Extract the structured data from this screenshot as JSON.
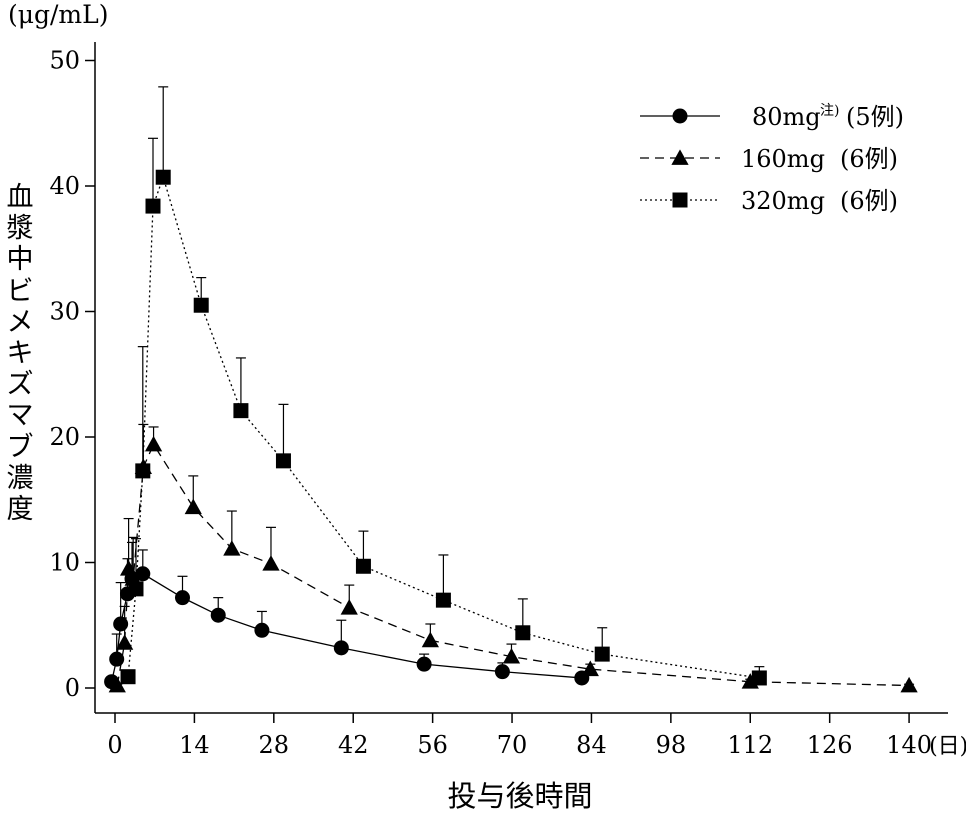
{
  "chart_data": {
    "type": "line",
    "title": "",
    "ylabel_unit": "(μg/mL)",
    "ylabel": "血漿中ビメキズマブ濃度",
    "xlabel": "投与後時間",
    "x_unit": "(日)",
    "xlim": [
      -2,
      146
    ],
    "ylim": [
      -2,
      52
    ],
    "xticks": [
      0,
      14,
      28,
      42,
      56,
      70,
      84,
      98,
      112,
      126,
      140
    ],
    "xtick_labels": [
      "0",
      "14",
      "28",
      "42",
      "56",
      "70",
      "84",
      "98",
      "112",
      "126",
      "140"
    ],
    "yticks": [
      0,
      10,
      20,
      30,
      40,
      50
    ],
    "ytick_labels": [
      "0",
      "10",
      "20",
      "30",
      "40",
      "50"
    ],
    "legend_position": "top-right",
    "error_bars": true,
    "series": [
      {
        "name": "80mg",
        "legend_sup": "注)",
        "legend_n": "(5例)",
        "marker": "circle",
        "line_style": "solid",
        "points": [
          {
            "x": -0.6,
            "y": 0.5,
            "err": 0.3
          },
          {
            "x": 0.3,
            "y": 2.3,
            "err": 2.0
          },
          {
            "x": 1.0,
            "y": 5.1,
            "err": 3.3
          },
          {
            "x": 2.2,
            "y": 7.5,
            "err": 2.8
          },
          {
            "x": 3.0,
            "y": 8.7,
            "err": 2.9
          },
          {
            "x": 4.9,
            "y": 9.1,
            "err": 1.9
          },
          {
            "x": 11.9,
            "y": 7.2,
            "err": 1.7
          },
          {
            "x": 18.2,
            "y": 5.8,
            "err": 1.4
          },
          {
            "x": 25.9,
            "y": 4.6,
            "err": 1.5
          },
          {
            "x": 39.9,
            "y": 3.2,
            "err": 2.2
          },
          {
            "x": 54.5,
            "y": 1.9,
            "err": 0.8
          },
          {
            "x": 68.3,
            "y": 1.3,
            "err": 0.7
          },
          {
            "x": 82.3,
            "y": 0.8,
            "err": 0.3
          }
        ]
      },
      {
        "name": "160mg",
        "legend_sup": "",
        "legend_n": "(6例)",
        "marker": "triangle",
        "line_style": "dashed",
        "points": [
          {
            "x": 0.4,
            "y": 0.2,
            "err": 0.1
          },
          {
            "x": 1.7,
            "y": 3.6,
            "err": 2.9
          },
          {
            "x": 2.4,
            "y": 9.5,
            "err": 4.0
          },
          {
            "x": 3.2,
            "y": 8.7,
            "err": 3.3
          },
          {
            "x": 5.0,
            "y": 17.6,
            "err": 3.4
          },
          {
            "x": 6.8,
            "y": 19.4,
            "err": 1.4
          },
          {
            "x": 13.8,
            "y": 14.4,
            "err": 2.5
          },
          {
            "x": 20.6,
            "y": 11.1,
            "err": 3.0
          },
          {
            "x": 27.5,
            "y": 9.9,
            "err": 2.9
          },
          {
            "x": 41.3,
            "y": 6.4,
            "err": 1.8
          },
          {
            "x": 55.6,
            "y": 3.8,
            "err": 1.3
          },
          {
            "x": 69.9,
            "y": 2.5,
            "err": 1.0
          },
          {
            "x": 83.8,
            "y": 1.5,
            "err": 0.4
          },
          {
            "x": 112.0,
            "y": 0.5,
            "err": 0.2
          },
          {
            "x": 140.0,
            "y": 0.2,
            "err": 0.1
          }
        ]
      },
      {
        "name": "320mg",
        "legend_sup": "",
        "legend_n": "(6例)",
        "marker": "square",
        "line_style": "dotted",
        "points": [
          {
            "x": 2.3,
            "y": 0.9,
            "err": 0.3
          },
          {
            "x": 3.7,
            "y": 7.9,
            "err": 4.0
          },
          {
            "x": 4.9,
            "y": 17.3,
            "err": 9.9
          },
          {
            "x": 6.7,
            "y": 38.4,
            "err": 5.4
          },
          {
            "x": 8.5,
            "y": 40.7,
            "err": 7.2
          },
          {
            "x": 15.2,
            "y": 30.5,
            "err": 2.2
          },
          {
            "x": 22.2,
            "y": 22.1,
            "err": 4.2
          },
          {
            "x": 29.7,
            "y": 18.1,
            "err": 4.5
          },
          {
            "x": 43.8,
            "y": 9.7,
            "err": 2.8
          },
          {
            "x": 57.9,
            "y": 7.0,
            "err": 3.6
          },
          {
            "x": 71.9,
            "y": 4.4,
            "err": 2.7
          },
          {
            "x": 85.9,
            "y": 2.7,
            "err": 2.1
          },
          {
            "x": 113.6,
            "y": 0.8,
            "err": 0.9
          }
        ]
      }
    ]
  }
}
